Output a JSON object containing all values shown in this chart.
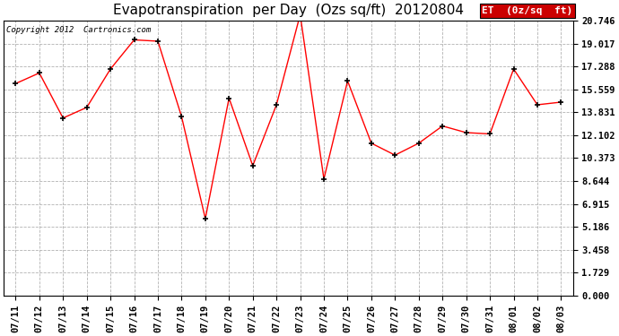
{
  "title": "Evapotranspiration  per Day  (Ozs sq/ft)  20120804",
  "copyright_text": "Copyright 2012  Cartronics.com",
  "legend_label": "ET  (0z/sq  ft)",
  "x_labels": [
    "07/11",
    "07/12",
    "07/13",
    "07/14",
    "07/15",
    "07/16",
    "07/17",
    "07/18",
    "07/19",
    "07/20",
    "07/21",
    "07/22",
    "07/23",
    "07/24",
    "07/25",
    "07/26",
    "07/27",
    "07/28",
    "07/29",
    "07/30",
    "07/31",
    "08/01",
    "08/02",
    "08/03"
  ],
  "y_values": [
    16.0,
    16.8,
    13.4,
    14.2,
    17.1,
    19.3,
    19.2,
    13.5,
    5.8,
    14.9,
    9.8,
    14.4,
    21.2,
    8.8,
    16.2,
    11.5,
    10.6,
    11.5,
    12.8,
    12.3,
    12.2,
    17.1,
    14.4,
    14.6
  ],
  "y_ticks": [
    0.0,
    1.729,
    3.458,
    5.186,
    6.915,
    8.644,
    10.373,
    12.102,
    13.831,
    15.559,
    17.288,
    19.017,
    20.746
  ],
  "line_color": "red",
  "marker_color": "black",
  "background_color": "#ffffff",
  "plot_bg_color": "#ffffff",
  "grid_color": "#aaaaaa",
  "title_fontsize": 11,
  "tick_fontsize": 7.5,
  "legend_bg_color": "#cc0000",
  "legend_text_color": "#ffffff",
  "fig_width": 6.9,
  "fig_height": 3.75,
  "dpi": 100
}
